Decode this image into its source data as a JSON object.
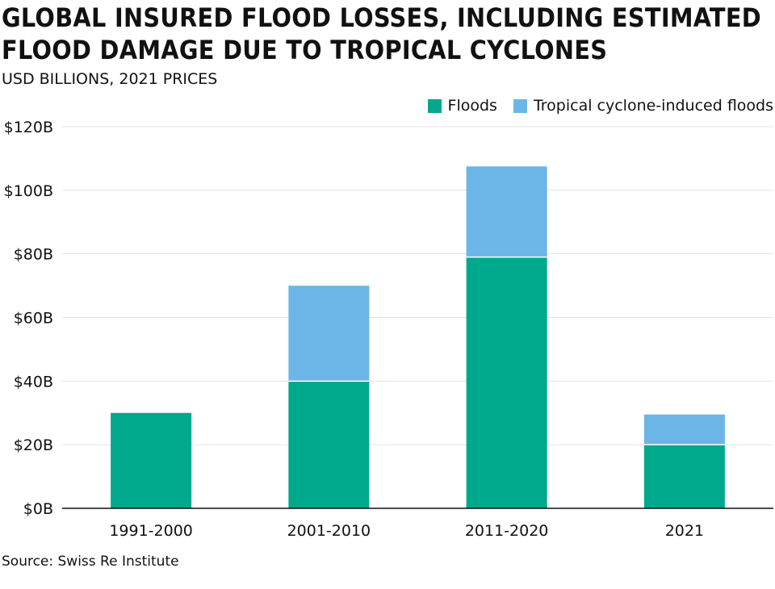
{
  "title": "GLOBAL INSURED FLOOD LOSSES, INCLUDING ESTIMATED FLOOD DAMAGE DUE TO TROPICAL CYCLONES",
  "subtitle": "USD BILLIONS, 2021 PRICES",
  "source": "Source: Swiss Re Institute",
  "colors": {
    "floods": "#00a88c",
    "tropical": "#6bb6e6",
    "grid": "#e2e2e2",
    "axis": "#111111"
  },
  "chart_data": {
    "type": "bar",
    "stacked": true,
    "categories": [
      "1991-2000",
      "2001-2010",
      "2011-2020",
      "2021"
    ],
    "series": [
      {
        "name": "Floods",
        "values": [
          30,
          40,
          79,
          20
        ]
      },
      {
        "name": "Tropical cyclone-induced floods",
        "values": [
          0,
          30,
          28.5,
          9.5
        ]
      }
    ],
    "ylim": [
      0,
      120
    ],
    "yticks": [
      0,
      20,
      40,
      60,
      80,
      100,
      120
    ],
    "ytick_labels": [
      "$0B",
      "$20B",
      "$40B",
      "$60B",
      "$80B",
      "$100B",
      "$120B"
    ],
    "grid": true,
    "legend_position": "top-right",
    "xlabel": "",
    "ylabel": ""
  }
}
